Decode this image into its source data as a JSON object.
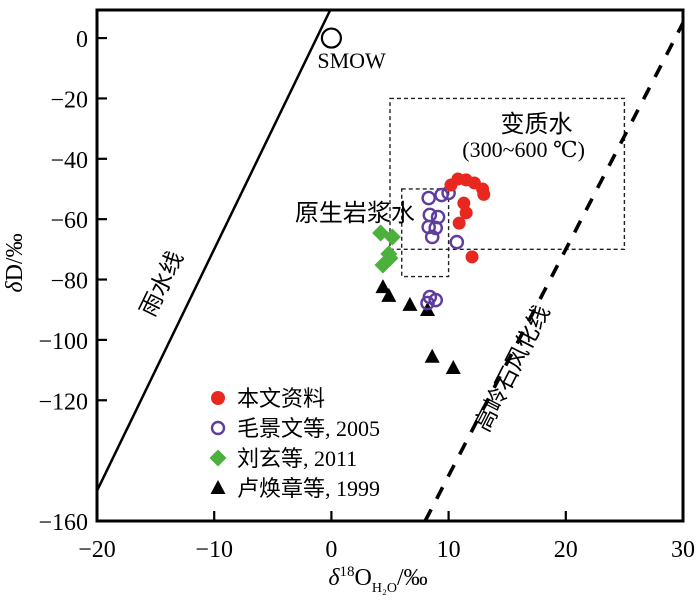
{
  "chart_data": {
    "type": "scatter",
    "title": "",
    "xlabel": "δ¹⁸O_H₂O/‰",
    "xlabel_parts": {
      "symbol": "δ",
      "superscript": "18",
      "element": "O",
      "subscript": "H₂O",
      "unit": "/‰"
    },
    "ylabel": "δD/‰",
    "ylabel_parts": {
      "symbol": "δ",
      "element": "D",
      "unit": "/‰"
    },
    "xlim": [
      -20,
      30
    ],
    "ylim": [
      -160,
      9.3
    ],
    "x_ticks": [
      -20,
      -10,
      0,
      10,
      20,
      30
    ],
    "y_ticks": [
      0,
      -20,
      -40,
      -60,
      -80,
      -100,
      -120,
      -160
    ],
    "grid": false,
    "legend_position": "inside-lower-left",
    "series": [
      {
        "name": "本文资料",
        "marker": "circle",
        "fill": "filled",
        "color": "#e8281e",
        "points": [
          [
            10.2,
            -48.7
          ],
          [
            10.8,
            -46.7
          ],
          [
            11.5,
            -47.0
          ],
          [
            12.2,
            -48.0
          ],
          [
            12.9,
            -50.0
          ],
          [
            13.0,
            -51.8
          ],
          [
            11.3,
            -54.7
          ],
          [
            11.5,
            -57.9
          ],
          [
            10.9,
            -61.3
          ],
          [
            12.0,
            -72.5
          ]
        ]
      },
      {
        "name": "毛景文等, 2005",
        "marker": "circle",
        "fill": "open",
        "color": "#5f3d9e",
        "points": [
          [
            8.3,
            -53.0
          ],
          [
            9.4,
            -52.0
          ],
          [
            10.0,
            -51.3
          ],
          [
            8.4,
            -58.6
          ],
          [
            9.1,
            -59.3
          ],
          [
            8.3,
            -62.6
          ],
          [
            8.9,
            -62.9
          ],
          [
            8.6,
            -65.9
          ],
          [
            10.7,
            -67.6
          ],
          [
            8.4,
            -85.8
          ],
          [
            8.9,
            -86.8
          ],
          [
            8.2,
            -87.8
          ]
        ]
      },
      {
        "name": "刘玄等, 2011",
        "marker": "diamond",
        "fill": "filled",
        "color": "#4cb13c",
        "points": [
          [
            4.2,
            -64.6
          ],
          [
            5.2,
            -65.9
          ],
          [
            5.0,
            -72.9
          ],
          [
            4.9,
            -71.5
          ],
          [
            4.4,
            -75.2
          ]
        ]
      },
      {
        "name": "卢焕章等, 1999",
        "marker": "triangle",
        "fill": "filled",
        "color": "#000000",
        "points": [
          [
            4.4,
            -82.5
          ],
          [
            4.9,
            -85.4
          ],
          [
            6.7,
            -88.4
          ],
          [
            8.2,
            -90.1
          ],
          [
            8.6,
            -105.6
          ],
          [
            10.4,
            -109.3
          ]
        ]
      }
    ],
    "reference_lines": [
      {
        "name": "meteoric-water-line",
        "label": "雨水线",
        "style": "solid",
        "from": [
          -20,
          -150
        ],
        "to": [
          -0.1,
          9.3
        ],
        "label_x": -13.9,
        "label_y": -82.5,
        "label_rotation": -64
      },
      {
        "name": "kaolinite-weathering-line",
        "label": "高岭石风化线",
        "style": "dashed",
        "from": [
          8,
          -160
        ],
        "to": [
          30,
          5
        ],
        "label_x": 16.0,
        "label_y": -110.6,
        "label_rotation": -63
      }
    ],
    "reference_boxes": [
      {
        "name": "metamorphic-water-field",
        "label": "变质水",
        "sublabel": "(300~600 ℃)",
        "x_range": [
          5,
          25
        ],
        "y_range": [
          -70,
          -20
        ],
        "label_x": 17.5,
        "label_y": -31.1,
        "sublabel_x": 16.4,
        "sublabel_y": -39.4
      },
      {
        "name": "primary-magmatic-water-field",
        "label": "原生岩浆水",
        "x_range": [
          6,
          10
        ],
        "y_range": [
          -79,
          -50
        ],
        "label_x": 2.0,
        "label_y": -60.6
      }
    ],
    "reference_points": [
      {
        "name": "smow",
        "label": "SMOW",
        "x": 0,
        "y": 0,
        "label_x": -1.2,
        "label_y": -9.9
      }
    ]
  }
}
